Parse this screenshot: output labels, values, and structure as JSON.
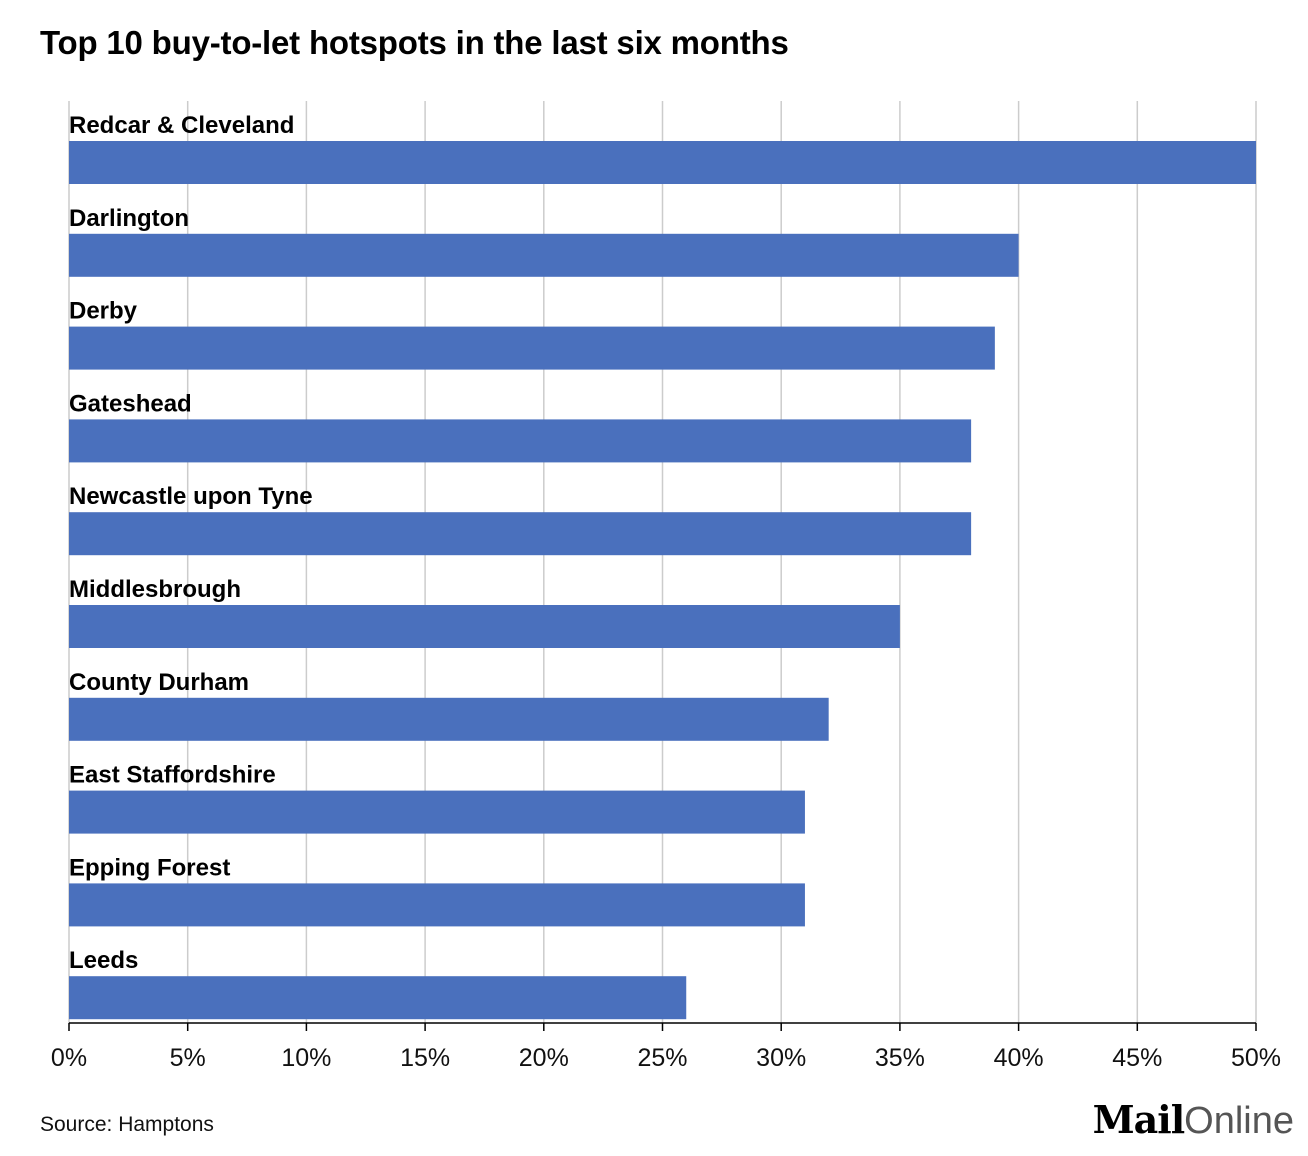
{
  "chart_data": {
    "type": "bar",
    "orientation": "horizontal",
    "title": "Top 10 buy-to-let hotspots in the last six months",
    "categories": [
      "Redcar & Cleveland",
      "Darlington",
      "Derby",
      "Gateshead",
      "Newcastle upon Tyne",
      "Middlesbrough",
      "County Durham",
      "East Staffordshire",
      "Epping Forest",
      "Leeds"
    ],
    "values": [
      50,
      40,
      39,
      38,
      38,
      35,
      32,
      31,
      31,
      26
    ],
    "unit": "%",
    "xlim": [
      0,
      50
    ],
    "x_ticks": [
      "0%",
      "5%",
      "10%",
      "15%",
      "20%",
      "25%",
      "30%",
      "35%",
      "40%",
      "45%",
      "50%"
    ],
    "grid": "vertical",
    "bar_color": "#4a70bd"
  },
  "footer": {
    "source": "Source: Hamptons",
    "brand_mail": "Mail",
    "brand_online": "Online"
  }
}
